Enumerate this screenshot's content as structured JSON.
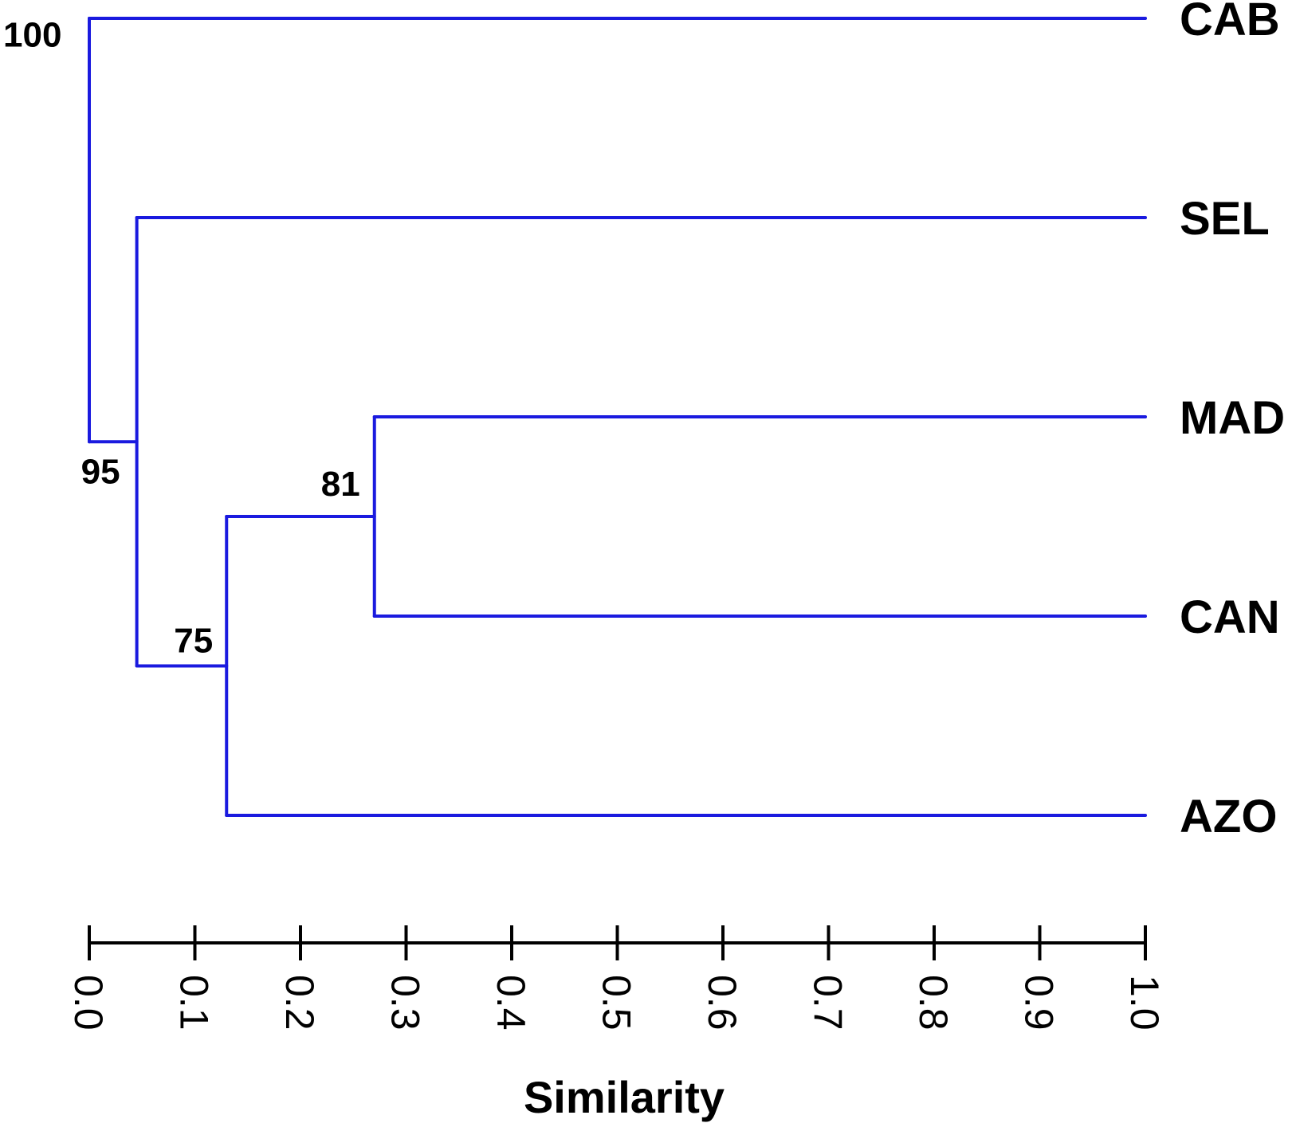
{
  "chart_data": {
    "type": "dendrogram",
    "xlabel": "Similarity",
    "xlim": [
      0.0,
      1.0
    ],
    "ticks": [
      "0.0",
      "0.1",
      "0.2",
      "0.3",
      "0.4",
      "0.5",
      "0.6",
      "0.7",
      "0.8",
      "0.9",
      "1.0"
    ],
    "leaves": [
      "CAB",
      "SEL",
      "MAD",
      "CAN",
      "AZO"
    ],
    "nodes": [
      {
        "id": "n81",
        "similarity": 0.27,
        "children": [
          "MAD",
          "CAN"
        ],
        "support": "81"
      },
      {
        "id": "n75",
        "similarity": 0.13,
        "children": [
          "n81",
          "AZO"
        ],
        "support": "75"
      },
      {
        "id": "n95",
        "similarity": 0.045,
        "children": [
          "SEL",
          "n75"
        ],
        "support": "95"
      },
      {
        "id": "n100",
        "similarity": 0.0,
        "children": [
          "CAB",
          "n95"
        ],
        "support": "100"
      }
    ],
    "line_color": "#1a1adf"
  }
}
